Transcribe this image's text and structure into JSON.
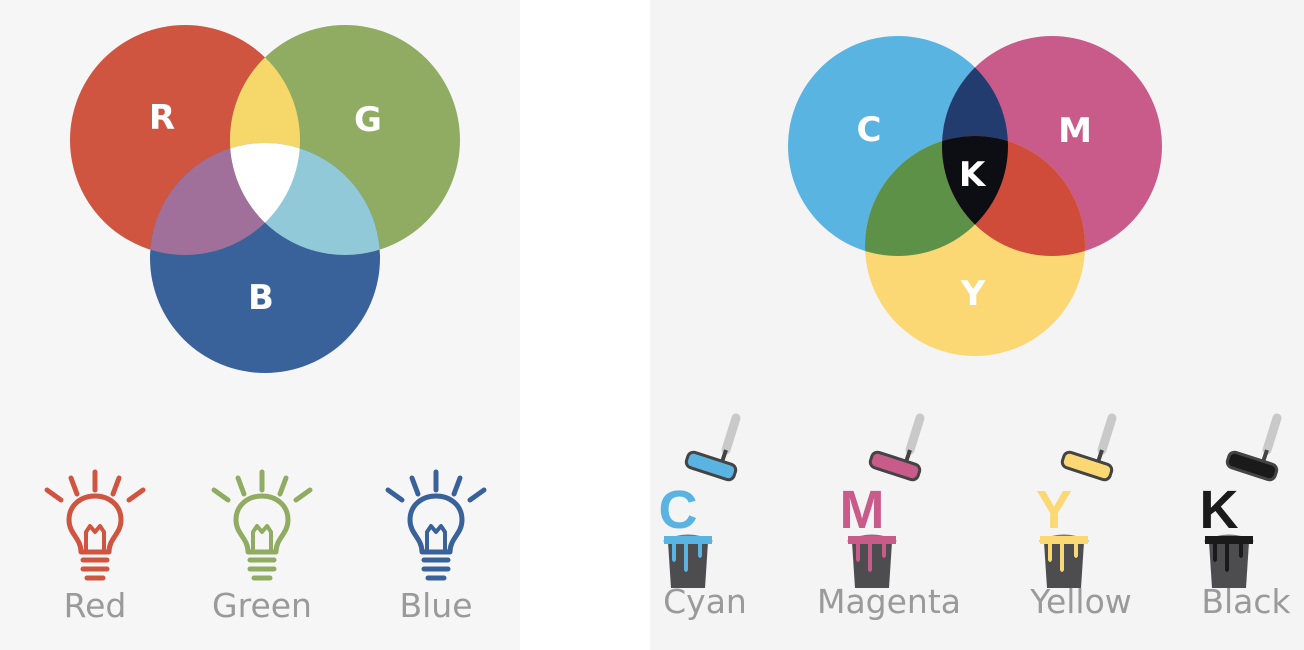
{
  "rgb": {
    "circles": [
      {
        "letter": "R",
        "color": "#d05540"
      },
      {
        "letter": "G",
        "color": "#8fac62"
      },
      {
        "letter": "B",
        "color": "#386299"
      }
    ],
    "overlaps": {
      "red_green": "#f6d86a",
      "red_blue": "#a1709a",
      "green_blue": "#92c9d8",
      "center": "#ffffff"
    },
    "lights": [
      {
        "label": "Red",
        "color": "#d05540",
        "icon": "light-bulb-icon"
      },
      {
        "label": "Green",
        "color": "#8fac62",
        "icon": "light-bulb-icon"
      },
      {
        "label": "Blue",
        "color": "#386299",
        "icon": "light-bulb-icon"
      }
    ]
  },
  "cmyk": {
    "circles": [
      {
        "letter": "C",
        "color": "#5ab4e1"
      },
      {
        "letter": "M",
        "color": "#c95b8a"
      },
      {
        "letter": "Y",
        "color": "#fbd873"
      }
    ],
    "center_letter": "K",
    "overlaps": {
      "cyan_magenta": "#223c70",
      "cyan_yellow": "#5e9148",
      "magenta_yellow": "#cf4b3a",
      "center": "#0d0e14"
    },
    "inks": [
      {
        "label": "Cyan",
        "letter": "C",
        "color": "#5ab4e1",
        "icon": "paint-bucket-roller-icon"
      },
      {
        "label": "Magenta",
        "letter": "M",
        "color": "#c95b8a",
        "icon": "paint-bucket-roller-icon"
      },
      {
        "label": "Yellow",
        "letter": "Y",
        "color": "#fbd873",
        "icon": "paint-bucket-roller-icon"
      },
      {
        "label": "Black",
        "letter": "K",
        "color": "#1a1a1a",
        "icon": "paint-bucket-roller-icon"
      }
    ]
  }
}
